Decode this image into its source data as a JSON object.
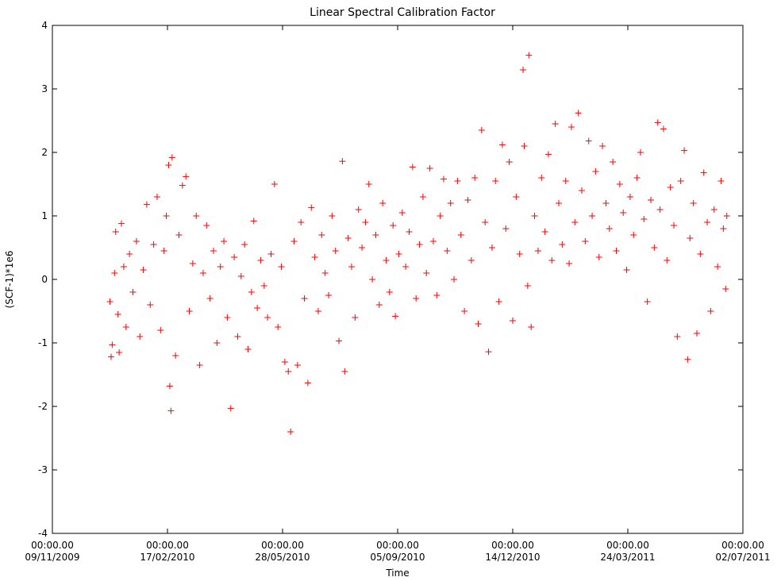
{
  "chart_data": {
    "type": "scatter",
    "title": "Linear Spectral Calibration Factor",
    "xlabel": "Time",
    "ylabel": "(SCF-1)*1e6",
    "marker": "plus",
    "color": "#ff0000",
    "grid": false,
    "x_type": "date",
    "xlim": [
      "2009-11-09",
      "2011-07-02"
    ],
    "ylim": [
      -4,
      4
    ],
    "yticks": [
      -4,
      -3,
      -2,
      -1,
      0,
      1,
      2,
      3,
      4
    ],
    "xticks": [
      {
        "time": "00:00.00",
        "date": "09/11/2009",
        "iso": "2009-11-09"
      },
      {
        "time": "00:00.00",
        "date": "17/02/2010",
        "iso": "2010-02-17"
      },
      {
        "time": "00:00.00",
        "date": "28/05/2010",
        "iso": "2010-05-28"
      },
      {
        "time": "00:00.00",
        "date": "05/09/2010",
        "iso": "2010-09-05"
      },
      {
        "time": "00:00.00",
        "date": "14/12/2010",
        "iso": "2010-12-14"
      },
      {
        "time": "00:00.00",
        "date": "24/03/2011",
        "iso": "2011-03-24"
      },
      {
        "time": "00:00.00",
        "date": "02/07/2011",
        "iso": "2011-07-02"
      }
    ],
    "points": [
      {
        "x": "2009-12-29",
        "y": -0.35
      },
      {
        "x": "2009-12-30",
        "y": -1.22
      },
      {
        "x": "2009-12-31",
        "y": -1.03
      },
      {
        "x": "2010-01-02",
        "y": 0.1
      },
      {
        "x": "2010-01-03",
        "y": 0.75
      },
      {
        "x": "2010-01-05",
        "y": -0.55
      },
      {
        "x": "2010-01-06",
        "y": -1.15
      },
      {
        "x": "2010-01-08",
        "y": 0.88
      },
      {
        "x": "2010-01-10",
        "y": 0.2
      },
      {
        "x": "2010-01-12",
        "y": -0.75
      },
      {
        "x": "2010-01-15",
        "y": 0.4
      },
      {
        "x": "2010-01-18",
        "y": -0.2
      },
      {
        "x": "2010-01-21",
        "y": 0.6
      },
      {
        "x": "2010-01-24",
        "y": -0.9
      },
      {
        "x": "2010-01-27",
        "y": 0.15
      },
      {
        "x": "2010-01-30",
        "y": 1.18
      },
      {
        "x": "2010-02-02",
        "y": -0.4
      },
      {
        "x": "2010-02-05",
        "y": 0.55
      },
      {
        "x": "2010-02-08",
        "y": 1.3
      },
      {
        "x": "2010-02-11",
        "y": -0.8
      },
      {
        "x": "2010-02-14",
        "y": 0.45
      },
      {
        "x": "2010-02-16",
        "y": 1.0
      },
      {
        "x": "2010-02-18",
        "y": 1.8
      },
      {
        "x": "2010-02-19",
        "y": -1.68
      },
      {
        "x": "2010-02-20",
        "y": -2.07
      },
      {
        "x": "2010-02-21",
        "y": 1.92
      },
      {
        "x": "2010-02-24",
        "y": -1.2
      },
      {
        "x": "2010-02-27",
        "y": 0.7
      },
      {
        "x": "2010-03-02",
        "y": 1.48
      },
      {
        "x": "2010-03-05",
        "y": 1.62
      },
      {
        "x": "2010-03-08",
        "y": -0.5
      },
      {
        "x": "2010-03-11",
        "y": 0.25
      },
      {
        "x": "2010-03-14",
        "y": 1.0
      },
      {
        "x": "2010-03-17",
        "y": -1.35
      },
      {
        "x": "2010-03-20",
        "y": 0.1
      },
      {
        "x": "2010-03-23",
        "y": 0.85
      },
      {
        "x": "2010-03-26",
        "y": -0.3
      },
      {
        "x": "2010-03-29",
        "y": 0.45
      },
      {
        "x": "2010-04-01",
        "y": -1.0
      },
      {
        "x": "2010-04-04",
        "y": 0.2
      },
      {
        "x": "2010-04-07",
        "y": 0.6
      },
      {
        "x": "2010-04-10",
        "y": -0.6
      },
      {
        "x": "2010-04-13",
        "y": -2.03
      },
      {
        "x": "2010-04-16",
        "y": 0.35
      },
      {
        "x": "2010-04-19",
        "y": -0.9
      },
      {
        "x": "2010-04-22",
        "y": 0.05
      },
      {
        "x": "2010-04-25",
        "y": 0.55
      },
      {
        "x": "2010-04-28",
        "y": -1.1
      },
      {
        "x": "2010-05-01",
        "y": -0.2
      },
      {
        "x": "2010-05-03",
        "y": 0.92
      },
      {
        "x": "2010-05-06",
        "y": -0.45
      },
      {
        "x": "2010-05-09",
        "y": 0.3
      },
      {
        "x": "2010-05-12",
        "y": -0.1
      },
      {
        "x": "2010-05-15",
        "y": -0.6
      },
      {
        "x": "2010-05-18",
        "y": 0.4
      },
      {
        "x": "2010-05-21",
        "y": 1.5
      },
      {
        "x": "2010-05-24",
        "y": -0.75
      },
      {
        "x": "2010-05-27",
        "y": 0.2
      },
      {
        "x": "2010-05-30",
        "y": -1.3
      },
      {
        "x": "2010-06-02",
        "y": -1.45
      },
      {
        "x": "2010-06-04",
        "y": -2.4
      },
      {
        "x": "2010-06-07",
        "y": 0.6
      },
      {
        "x": "2010-06-10",
        "y": -1.35
      },
      {
        "x": "2010-06-13",
        "y": 0.9
      },
      {
        "x": "2010-06-16",
        "y": -0.3
      },
      {
        "x": "2010-06-19",
        "y": -1.63
      },
      {
        "x": "2010-06-22",
        "y": 1.13
      },
      {
        "x": "2010-06-25",
        "y": 0.35
      },
      {
        "x": "2010-06-28",
        "y": -0.5
      },
      {
        "x": "2010-07-01",
        "y": 0.7
      },
      {
        "x": "2010-07-04",
        "y": 0.1
      },
      {
        "x": "2010-07-07",
        "y": -0.25
      },
      {
        "x": "2010-07-10",
        "y": 1.0
      },
      {
        "x": "2010-07-13",
        "y": 0.45
      },
      {
        "x": "2010-07-16",
        "y": -0.97
      },
      {
        "x": "2010-07-19",
        "y": 1.86
      },
      {
        "x": "2010-07-21",
        "y": -1.45
      },
      {
        "x": "2010-07-24",
        "y": 0.65
      },
      {
        "x": "2010-07-27",
        "y": 0.2
      },
      {
        "x": "2010-07-30",
        "y": -0.6
      },
      {
        "x": "2010-08-02",
        "y": 1.1
      },
      {
        "x": "2010-08-05",
        "y": 0.5
      },
      {
        "x": "2010-08-08",
        "y": 0.9
      },
      {
        "x": "2010-08-11",
        "y": 1.5
      },
      {
        "x": "2010-08-14",
        "y": 0.0
      },
      {
        "x": "2010-08-17",
        "y": 0.7
      },
      {
        "x": "2010-08-20",
        "y": -0.4
      },
      {
        "x": "2010-08-23",
        "y": 1.2
      },
      {
        "x": "2010-08-26",
        "y": 0.3
      },
      {
        "x": "2010-08-29",
        "y": -0.2
      },
      {
        "x": "2010-09-01",
        "y": 0.85
      },
      {
        "x": "2010-09-03",
        "y": -0.58
      },
      {
        "x": "2010-09-06",
        "y": 0.4
      },
      {
        "x": "2010-09-09",
        "y": 1.05
      },
      {
        "x": "2010-09-12",
        "y": 0.2
      },
      {
        "x": "2010-09-15",
        "y": 0.75
      },
      {
        "x": "2010-09-18",
        "y": 1.77
      },
      {
        "x": "2010-09-21",
        "y": -0.3
      },
      {
        "x": "2010-09-24",
        "y": 0.55
      },
      {
        "x": "2010-09-27",
        "y": 1.3
      },
      {
        "x": "2010-09-30",
        "y": 0.1
      },
      {
        "x": "2010-10-03",
        "y": 1.75
      },
      {
        "x": "2010-10-06",
        "y": 0.6
      },
      {
        "x": "2010-10-09",
        "y": -0.25
      },
      {
        "x": "2010-10-12",
        "y": 1.0
      },
      {
        "x": "2010-10-15",
        "y": 1.58
      },
      {
        "x": "2010-10-18",
        "y": 0.45
      },
      {
        "x": "2010-10-21",
        "y": 1.2
      },
      {
        "x": "2010-10-24",
        "y": 0.0
      },
      {
        "x": "2010-10-27",
        "y": 1.55
      },
      {
        "x": "2010-10-30",
        "y": 0.7
      },
      {
        "x": "2010-11-02",
        "y": -0.5
      },
      {
        "x": "2010-11-05",
        "y": 1.25
      },
      {
        "x": "2010-11-08",
        "y": 0.3
      },
      {
        "x": "2010-11-11",
        "y": 1.6
      },
      {
        "x": "2010-11-14",
        "y": -0.7
      },
      {
        "x": "2010-11-17",
        "y": 2.35
      },
      {
        "x": "2010-11-20",
        "y": 0.9
      },
      {
        "x": "2010-11-23",
        "y": -1.14
      },
      {
        "x": "2010-11-26",
        "y": 0.5
      },
      {
        "x": "2010-11-29",
        "y": 1.55
      },
      {
        "x": "2010-12-02",
        "y": -0.35
      },
      {
        "x": "2010-12-05",
        "y": 2.12
      },
      {
        "x": "2010-12-08",
        "y": 0.8
      },
      {
        "x": "2010-12-11",
        "y": 1.85
      },
      {
        "x": "2010-12-14",
        "y": -0.65
      },
      {
        "x": "2010-12-17",
        "y": 1.3
      },
      {
        "x": "2010-12-20",
        "y": 0.4
      },
      {
        "x": "2010-12-23",
        "y": 3.3
      },
      {
        "x": "2010-12-24",
        "y": 2.1
      },
      {
        "x": "2010-12-27",
        "y": -0.1
      },
      {
        "x": "2010-12-28",
        "y": 3.53
      },
      {
        "x": "2010-12-30",
        "y": -0.75
      },
      {
        "x": "2011-01-02",
        "y": 1.0
      },
      {
        "x": "2011-01-05",
        "y": 0.45
      },
      {
        "x": "2011-01-08",
        "y": 1.6
      },
      {
        "x": "2011-01-11",
        "y": 0.75
      },
      {
        "x": "2011-01-14",
        "y": 1.97
      },
      {
        "x": "2011-01-17",
        "y": 0.3
      },
      {
        "x": "2011-01-20",
        "y": 2.45
      },
      {
        "x": "2011-01-23",
        "y": 1.2
      },
      {
        "x": "2011-01-26",
        "y": 0.55
      },
      {
        "x": "2011-01-29",
        "y": 1.55
      },
      {
        "x": "2011-02-01",
        "y": 0.25
      },
      {
        "x": "2011-02-03",
        "y": 2.4
      },
      {
        "x": "2011-02-06",
        "y": 0.9
      },
      {
        "x": "2011-02-09",
        "y": 2.62
      },
      {
        "x": "2011-02-12",
        "y": 1.4
      },
      {
        "x": "2011-02-15",
        "y": 0.6
      },
      {
        "x": "2011-02-18",
        "y": 2.18
      },
      {
        "x": "2011-02-21",
        "y": 1.0
      },
      {
        "x": "2011-02-24",
        "y": 1.7
      },
      {
        "x": "2011-02-27",
        "y": 0.35
      },
      {
        "x": "2011-03-02",
        "y": 2.1
      },
      {
        "x": "2011-03-05",
        "y": 1.2
      },
      {
        "x": "2011-03-08",
        "y": 0.8
      },
      {
        "x": "2011-03-11",
        "y": 1.85
      },
      {
        "x": "2011-03-14",
        "y": 0.45
      },
      {
        "x": "2011-03-17",
        "y": 1.5
      },
      {
        "x": "2011-03-20",
        "y": 1.05
      },
      {
        "x": "2011-03-23",
        "y": 0.15
      },
      {
        "x": "2011-03-26",
        "y": 1.3
      },
      {
        "x": "2011-03-29",
        "y": 0.7
      },
      {
        "x": "2011-04-01",
        "y": 1.6
      },
      {
        "x": "2011-04-04",
        "y": 2.0
      },
      {
        "x": "2011-04-07",
        "y": 0.95
      },
      {
        "x": "2011-04-10",
        "y": -0.35
      },
      {
        "x": "2011-04-13",
        "y": 1.25
      },
      {
        "x": "2011-04-16",
        "y": 0.5
      },
      {
        "x": "2011-04-19",
        "y": 2.47
      },
      {
        "x": "2011-04-21",
        "y": 1.1
      },
      {
        "x": "2011-04-24",
        "y": 2.37
      },
      {
        "x": "2011-04-27",
        "y": 0.3
      },
      {
        "x": "2011-04-30",
        "y": 1.45
      },
      {
        "x": "2011-05-03",
        "y": 0.85
      },
      {
        "x": "2011-05-06",
        "y": -0.9
      },
      {
        "x": "2011-05-09",
        "y": 1.55
      },
      {
        "x": "2011-05-12",
        "y": 2.03
      },
      {
        "x": "2011-05-15",
        "y": -1.26
      },
      {
        "x": "2011-05-17",
        "y": 0.65
      },
      {
        "x": "2011-05-20",
        "y": 1.2
      },
      {
        "x": "2011-05-23",
        "y": -0.85
      },
      {
        "x": "2011-05-26",
        "y": 0.4
      },
      {
        "x": "2011-05-29",
        "y": 1.68
      },
      {
        "x": "2011-06-01",
        "y": 0.9
      },
      {
        "x": "2011-06-04",
        "y": -0.5
      },
      {
        "x": "2011-06-07",
        "y": 1.1
      },
      {
        "x": "2011-06-10",
        "y": 0.2
      },
      {
        "x": "2011-06-13",
        "y": 1.55
      },
      {
        "x": "2011-06-15",
        "y": 0.8
      },
      {
        "x": "2011-06-17",
        "y": -0.15
      },
      {
        "x": "2011-06-18",
        "y": 1.0
      }
    ]
  }
}
